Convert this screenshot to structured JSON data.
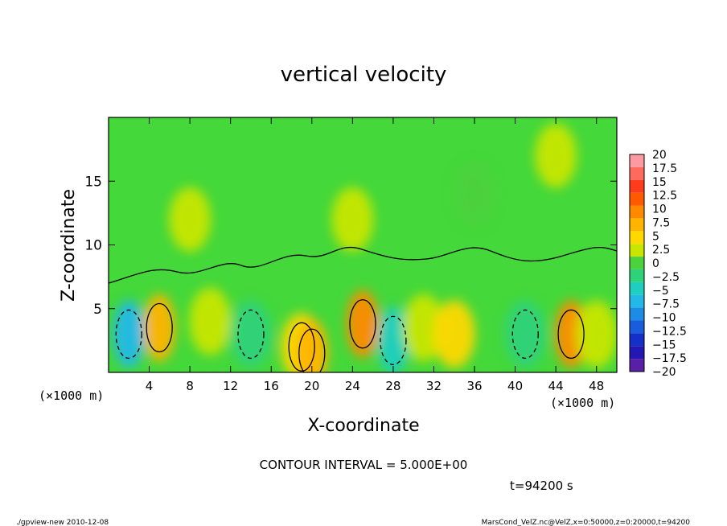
{
  "chart_data": {
    "type": "heatmap",
    "title": "vertical velocity",
    "xlabel": "X-coordinate",
    "ylabel": "Z-coordinate",
    "x_unit_left": "(×1000 m)",
    "x_unit_right": "(×1000 m)",
    "xlim": [
      0,
      50
    ],
    "ylim": [
      0,
      20
    ],
    "x_ticks": [
      4,
      8,
      12,
      16,
      20,
      24,
      28,
      32,
      36,
      40,
      44,
      48
    ],
    "x_tick_labels": [
      "4",
      "8",
      "12",
      "16",
      "20",
      "24",
      "28",
      "32",
      "36",
      "40",
      "44",
      "48"
    ],
    "y_ticks": [
      5,
      10,
      15
    ],
    "y_tick_labels": [
      "5",
      "10",
      "15"
    ],
    "colorbar": {
      "min": -20,
      "max": 20,
      "step": 2.5,
      "tick_labels": [
        "20",
        "17.5",
        "15",
        "12.5",
        "10",
        "7.5",
        "5",
        "2.5",
        "0",
        "−2.5",
        "−5",
        "−7.5",
        "−10",
        "−12.5",
        "−15",
        "−17.5",
        "−20"
      ],
      "colors": [
        "#ff9aa2",
        "#ff6a5e",
        "#ff3b1d",
        "#ff5a00",
        "#ff8a00",
        "#ffb400",
        "#ffd800",
        "#c8e600",
        "#4cd23c",
        "#2ed27a",
        "#1ecfc0",
        "#22b8e8",
        "#1d8ce6",
        "#1a5ddc",
        "#1530c8",
        "#2418b4",
        "#5a1fa8"
      ]
    },
    "cells": [
      {
        "x": 2,
        "z": 3,
        "w": -9.5
      },
      {
        "x": 5,
        "z": 3.5,
        "w": 7.5
      },
      {
        "x": 10,
        "z": 4,
        "w": 2
      },
      {
        "x": 14,
        "z": 3,
        "w": -4
      },
      {
        "x": 19,
        "z": 2,
        "w": 4.5
      },
      {
        "x": 20,
        "z": 1.5,
        "w": 5.5
      },
      {
        "x": 25,
        "z": 3.8,
        "w": 8
      },
      {
        "x": 28,
        "z": 2.5,
        "w": -6
      },
      {
        "x": 31,
        "z": 3.5,
        "w": 2
      },
      {
        "x": 34,
        "z": 3,
        "w": 3
      },
      {
        "x": 41,
        "z": 3,
        "w": -4
      },
      {
        "x": 45.5,
        "z": 3,
        "w": 9
      },
      {
        "x": 48,
        "z": 3,
        "w": 1
      },
      {
        "x": 8,
        "z": 12,
        "w": 1.5
      },
      {
        "x": 24,
        "z": 12,
        "w": 1.5
      },
      {
        "x": 36,
        "z": 14,
        "w": -0.5
      },
      {
        "x": 44,
        "z": 17,
        "w": 1
      }
    ],
    "annotations": {
      "contour_interval": "CONTOUR INTERVAL = 5.000E+00",
      "time": "t=94200 s"
    }
  },
  "footer": {
    "left": "./gpview-new   2010-12-08",
    "right": "MarsCond_VelZ.nc@VelZ,x=0:50000,z=0:20000,t=94200"
  }
}
